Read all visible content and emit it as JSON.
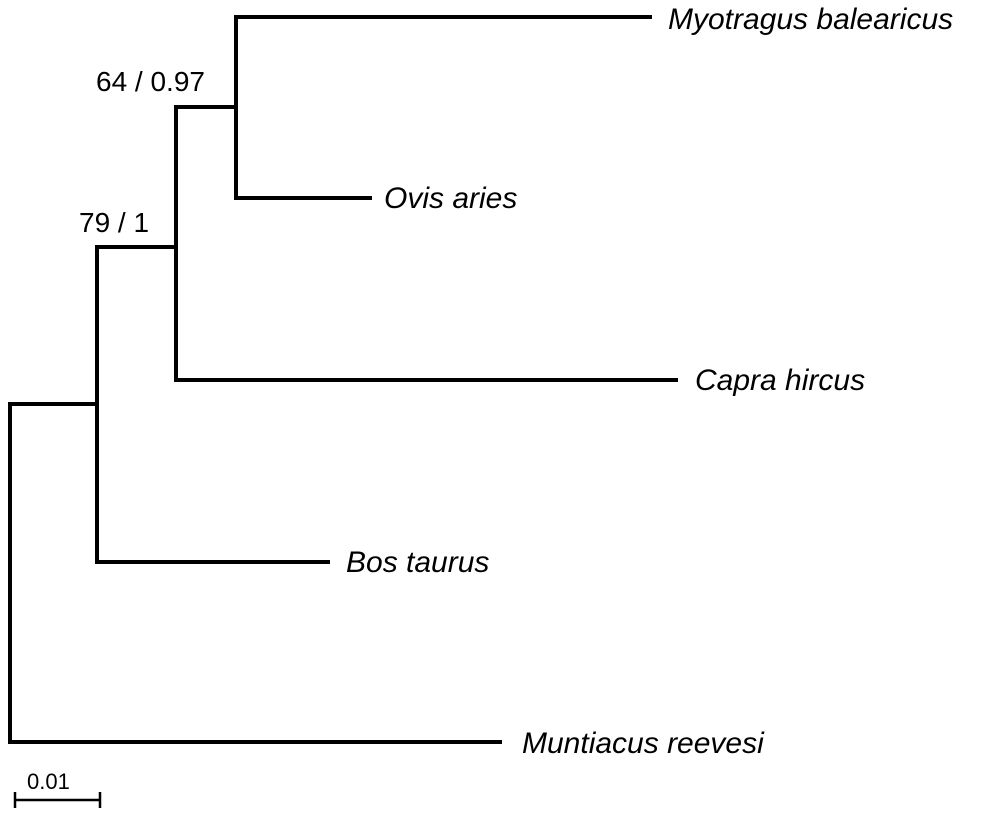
{
  "tree": {
    "taxa": [
      {
        "key": "myotragus",
        "label": "Myotragus balearicus"
      },
      {
        "key": "ovis",
        "label": "Ovis aries"
      },
      {
        "key": "capra",
        "label": "Capra hircus"
      },
      {
        "key": "bos",
        "label": "Bos taurus"
      },
      {
        "key": "muntiacus",
        "label": "Muntiacus reevesi"
      }
    ],
    "support": [
      {
        "key": "myotragus_ovis",
        "label": "64 / 0.97"
      },
      {
        "key": "caprini",
        "label": "79 / 1"
      }
    ],
    "scale_bar": {
      "label": "0.01"
    },
    "colors": {
      "line": "#000000",
      "background": "#ffffff"
    }
  }
}
